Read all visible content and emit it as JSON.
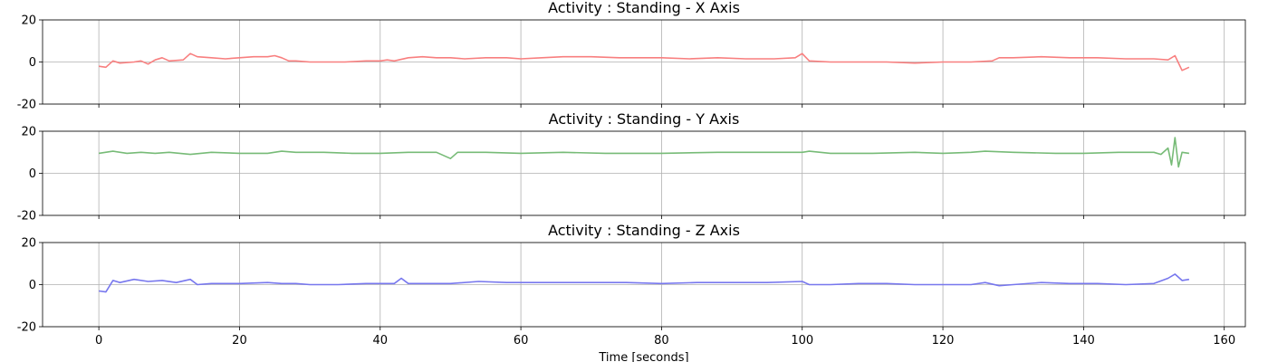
{
  "chart_data": {
    "type": "line",
    "xlabel": "Time [seconds]",
    "xlim": [
      -8,
      163
    ],
    "ylim": [
      -20,
      20
    ],
    "x_ticks": [
      0,
      20,
      40,
      60,
      80,
      100,
      120,
      140,
      160
    ],
    "y_ticks": [
      -20,
      0,
      20
    ],
    "grid": true,
    "shared_x": true,
    "panels": [
      {
        "title": "Activity : Standing - X Axis",
        "color": "#f87f7f",
        "x": [
          0,
          1,
          2,
          3,
          5,
          6,
          7,
          8,
          9,
          10,
          12,
          13,
          14,
          16,
          18,
          20,
          22,
          24,
          25,
          26,
          27,
          28,
          30,
          32,
          35,
          38,
          40,
          41,
          42,
          44,
          46,
          48,
          50,
          52,
          55,
          58,
          60,
          63,
          66,
          70,
          74,
          78,
          80,
          84,
          88,
          92,
          96,
          99,
          100,
          101,
          104,
          108,
          112,
          116,
          120,
          124,
          127,
          128,
          130,
          134,
          138,
          142,
          146,
          150,
          152,
          153,
          154,
          155
        ],
        "y": [
          -2,
          -2.5,
          0.5,
          -0.5,
          0,
          0.5,
          -1,
          1,
          2,
          0.5,
          1,
          4,
          2.5,
          2,
          1.5,
          2,
          2.5,
          2.5,
          3,
          2,
          0.5,
          0.5,
          0,
          0,
          0,
          0.5,
          0.5,
          1,
          0.5,
          2,
          2.5,
          2,
          2,
          1.5,
          2,
          2,
          1.5,
          2,
          2.5,
          2.5,
          2,
          2,
          2,
          1.5,
          2,
          1.5,
          1.5,
          2,
          4,
          0.5,
          0,
          0,
          0,
          -0.5,
          0,
          0,
          0.5,
          2,
          2,
          2.5,
          2,
          2,
          1.5,
          1.5,
          1,
          3,
          -4,
          -2.5
        ]
      },
      {
        "title": "Activity : Standing - Y Axis",
        "color": "#77bb77",
        "x": [
          0,
          2,
          4,
          6,
          8,
          10,
          13,
          16,
          20,
          24,
          26,
          28,
          32,
          36,
          40,
          44,
          48,
          50,
          51,
          55,
          60,
          66,
          72,
          80,
          88,
          96,
          100,
          101,
          104,
          110,
          116,
          120,
          124,
          126,
          130,
          136,
          140,
          145,
          150,
          151,
          152,
          152.5,
          153,
          153.5,
          154,
          155
        ],
        "y": [
          9.5,
          10.5,
          9.5,
          10,
          9.5,
          10,
          9,
          10,
          9.5,
          9.5,
          10.5,
          10,
          10,
          9.5,
          9.5,
          10,
          10,
          7,
          10,
          10,
          9.5,
          10,
          9.5,
          9.5,
          10,
          10,
          10,
          10.5,
          9.5,
          9.5,
          10,
          9.5,
          10,
          10.5,
          10,
          9.5,
          9.5,
          10,
          10,
          9,
          12,
          4,
          17,
          3,
          10,
          9.5
        ]
      },
      {
        "title": "Activity : Standing - Z Axis",
        "color": "#7777ee",
        "x": [
          0,
          1,
          2,
          3,
          5,
          7,
          9,
          11,
          13,
          14,
          16,
          20,
          24,
          26,
          28,
          30,
          34,
          38,
          42,
          43,
          44,
          46,
          48,
          50,
          54,
          58,
          62,
          66,
          70,
          75,
          80,
          85,
          90,
          95,
          100,
          101,
          104,
          108,
          112,
          116,
          120,
          124,
          126,
          128,
          130,
          134,
          138,
          142,
          146,
          150,
          152,
          153,
          154,
          155
        ],
        "y": [
          -3,
          -3.5,
          2,
          1,
          2.5,
          1.5,
          2,
          1,
          2.5,
          0,
          0.5,
          0.5,
          1,
          0.5,
          0.5,
          0,
          0,
          0.5,
          0.5,
          3,
          0.5,
          0.5,
          0.5,
          0.5,
          1.5,
          1,
          1,
          1,
          1,
          1,
          0.5,
          1,
          1,
          1,
          1.5,
          0,
          0,
          0.5,
          0.5,
          0,
          0,
          0,
          1,
          -0.5,
          0,
          1,
          0.5,
          0.5,
          0,
          0.5,
          3,
          5,
          2,
          2.5
        ]
      }
    ]
  }
}
